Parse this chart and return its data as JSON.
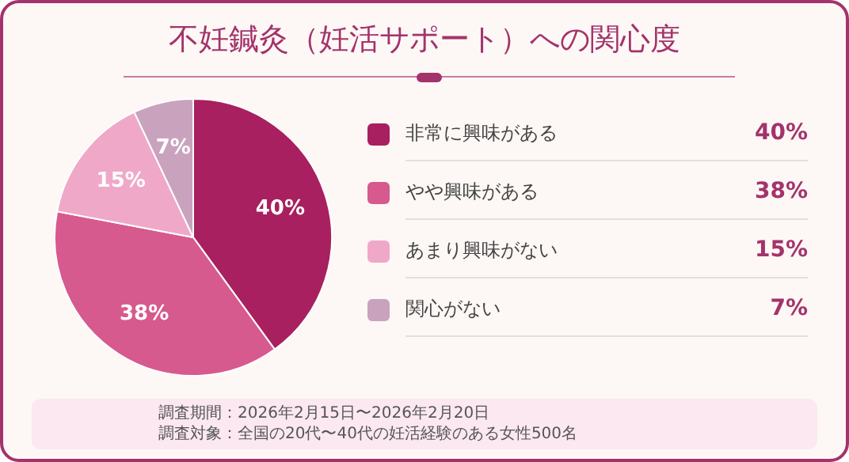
{
  "chart_data": {
    "type": "pie",
    "title": "不妊鍼灸（妊活サポート）への関心度",
    "categories": [
      "非常に興味がある",
      "やや興味がある",
      "あまり興味がない",
      "関心がない"
    ],
    "values": [
      40,
      38,
      15,
      7
    ],
    "colors": [
      "#a8205f",
      "#d65a8e",
      "#f0a8c8",
      "#c9a3bd"
    ],
    "value_labels": [
      "40%",
      "38%",
      "15%",
      "7%"
    ],
    "legend": "right",
    "annotations": [
      "調査期間：2026年2月15日〜2026年2月20日",
      "調査対象：全国の20代〜40代の妊活経験のある女性500名"
    ]
  }
}
